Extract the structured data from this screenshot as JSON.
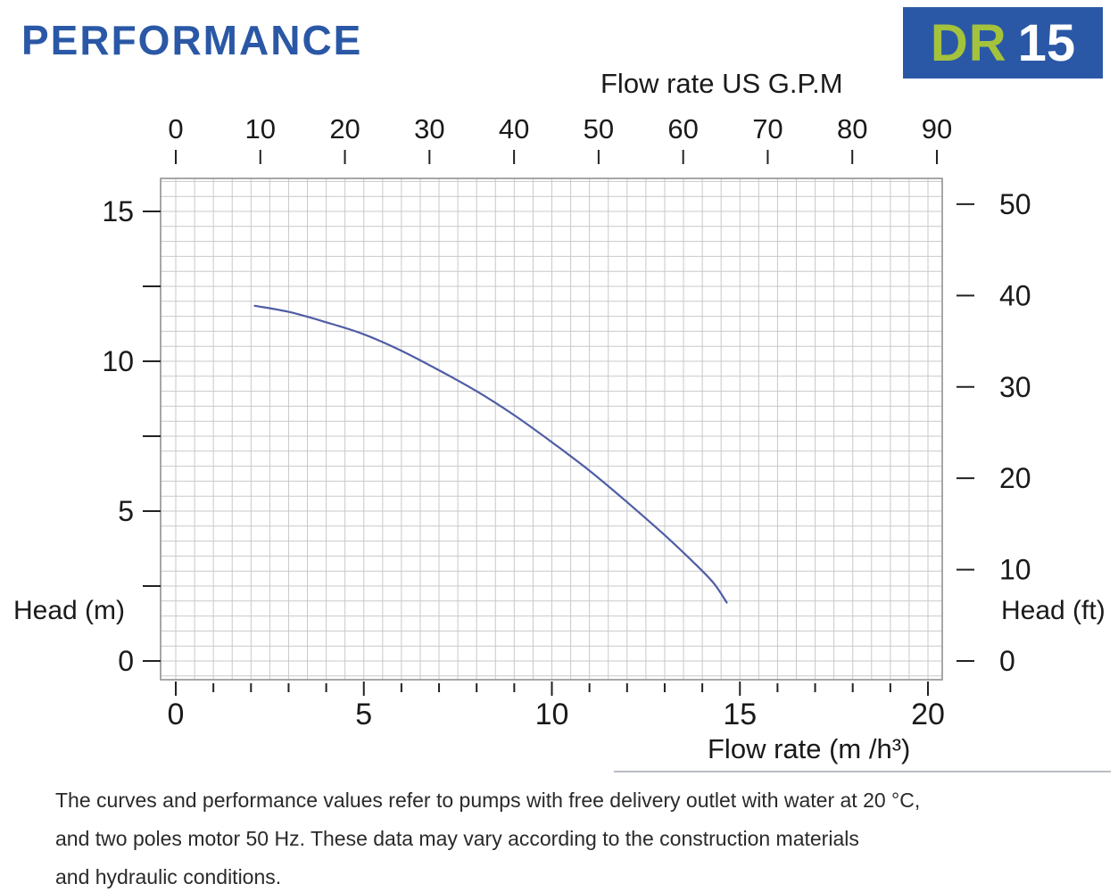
{
  "header": {
    "title": "PERFORMANCE",
    "badge": {
      "model": "DR",
      "number": "15"
    }
  },
  "chart_data": {
    "type": "line",
    "top_axis": {
      "label": "Flow rate US  G.P.M",
      "ticks": [
        0,
        10,
        20,
        30,
        40,
        50,
        60,
        70,
        80,
        90
      ],
      "range": [
        0,
        91
      ]
    },
    "bottom_axis": {
      "label": "Flow rate  (m /h³)",
      "ticks": [
        0,
        5,
        10,
        15,
        20
      ],
      "minor_tick_step": 1,
      "range": [
        -0.4,
        20.4
      ]
    },
    "left_axis": {
      "label": "Head (m)",
      "ticks": [
        0,
        5,
        10,
        15
      ],
      "tick_dash_step": 2.5,
      "range": [
        -0.65,
        16.1
      ]
    },
    "right_axis": {
      "label": "Head (ft)",
      "ticks": [
        0,
        10,
        20,
        30,
        40,
        50
      ]
    },
    "grid": {
      "show": true,
      "minor_step_x": 0.5,
      "minor_step_y": 0.5
    },
    "series": [
      {
        "name": "head-curve",
        "x_m3h": [
          2.1,
          3,
          4,
          5,
          6,
          7,
          8,
          9,
          10,
          11,
          12,
          13,
          13.8,
          14.3,
          14.65
        ],
        "head_m": [
          11.85,
          11.65,
          11.3,
          10.9,
          10.35,
          9.7,
          9.0,
          8.2,
          7.3,
          6.35,
          5.3,
          4.2,
          3.25,
          2.6,
          1.95
        ]
      }
    ]
  },
  "footer": {
    "lines": [
      "The curves and performance values refer to pumps with free delivery outlet with water at 20 °C,",
      "and two poles motor 50 Hz. These data may vary according to the construction materials",
      "and hydraulic conditions."
    ]
  },
  "colors": {
    "brand_blue": "#2a58a6",
    "badge_green": "#a4c23c",
    "badge_number_white": "#ffffff",
    "curve": "#4e5da5",
    "grid": "#c9c9c9",
    "plot_border": "#8a8a8a",
    "tick": "#222222"
  }
}
